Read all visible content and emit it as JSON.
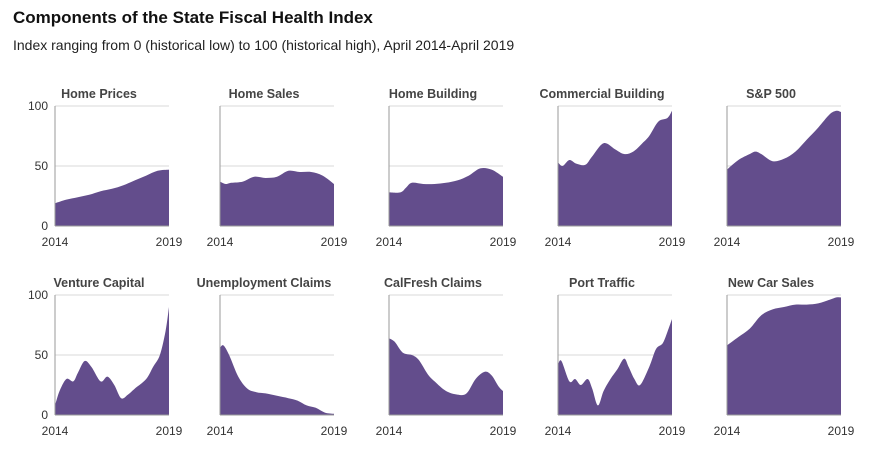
{
  "title": "Components of the State Fiscal Health Index",
  "subtitle": "Index ranging from 0 (historical low) to 100 (historical high), April 2014-April 2019",
  "colors": {
    "area": "#634d8c",
    "grid": "#d9d9d9",
    "axis": "#9a9a9a"
  },
  "chart_data": [
    {
      "type": "area",
      "title": "Home Prices",
      "x": [
        2014,
        2014.5,
        2015,
        2015.5,
        2016,
        2016.5,
        2017,
        2017.5,
        2018,
        2018.5,
        2019
      ],
      "values": [
        19,
        22,
        24,
        26,
        29,
        31,
        34,
        38,
        42,
        46,
        47
      ],
      "ylim": [
        0,
        100
      ],
      "yticks": [
        0,
        50,
        100
      ],
      "xticks": [
        "2014",
        "2019"
      ]
    },
    {
      "type": "area",
      "title": "Home Sales",
      "x": [
        2014,
        2014.25,
        2014.5,
        2015,
        2015.5,
        2016,
        2016.5,
        2017,
        2017.5,
        2018,
        2018.5,
        2019
      ],
      "values": [
        37,
        35,
        36,
        37,
        41,
        40,
        41,
        46,
        45,
        45,
        42,
        35
      ],
      "ylim": [
        0,
        100
      ],
      "yticks": [
        0,
        50,
        100
      ],
      "xticks": [
        "2014",
        "2019"
      ]
    },
    {
      "type": "area",
      "title": "Home Building",
      "x": [
        2014,
        2014.5,
        2014.75,
        2015,
        2015.5,
        2016,
        2016.5,
        2017,
        2017.5,
        2018,
        2018.5,
        2019
      ],
      "values": [
        28,
        28,
        32,
        36,
        35,
        35,
        36,
        38,
        42,
        48,
        47,
        41
      ],
      "ylim": [
        0,
        100
      ],
      "yticks": [
        0,
        50,
        100
      ],
      "xticks": [
        "2014",
        "2019"
      ]
    },
    {
      "type": "area",
      "title": "Commercial Building",
      "x": [
        2014,
        2014.2,
        2014.5,
        2014.8,
        2015.2,
        2015.5,
        2016,
        2016.5,
        2016.9,
        2017.3,
        2017.7,
        2018,
        2018.4,
        2018.8,
        2019
      ],
      "values": [
        53,
        50,
        55,
        52,
        51,
        58,
        69,
        64,
        60,
        62,
        69,
        75,
        87,
        90,
        96
      ],
      "ylim": [
        0,
        100
      ],
      "yticks": [
        0,
        50,
        100
      ],
      "xticks": [
        "2014",
        "2019"
      ]
    },
    {
      "type": "area",
      "title": "S&P 500",
      "x": [
        2014,
        2014.5,
        2015,
        2015.25,
        2015.5,
        2016,
        2016.5,
        2017,
        2017.5,
        2018,
        2018.5,
        2018.8,
        2019
      ],
      "values": [
        47,
        55,
        60,
        62,
        60,
        54,
        56,
        62,
        72,
        82,
        93,
        96,
        95
      ],
      "ylim": [
        0,
        100
      ],
      "yticks": [
        0,
        50,
        100
      ],
      "xticks": [
        "2014",
        "2019"
      ]
    },
    {
      "type": "area",
      "title": "Venture Capital",
      "x": [
        2014,
        2014.2,
        2014.5,
        2014.8,
        2015,
        2015.3,
        2015.6,
        2016,
        2016.3,
        2016.6,
        2016.9,
        2017.2,
        2017.5,
        2018,
        2018.3,
        2018.6,
        2018.85,
        2019
      ],
      "values": [
        8,
        20,
        30,
        28,
        35,
        45,
        40,
        28,
        32,
        25,
        14,
        17,
        22,
        30,
        40,
        50,
        70,
        90
      ],
      "ylim": [
        0,
        100
      ],
      "yticks": [
        0,
        50,
        100
      ],
      "xticks": [
        "2014",
        "2019"
      ]
    },
    {
      "type": "area",
      "title": "Unemployment Claims",
      "x": [
        2014,
        2014.15,
        2014.4,
        2014.8,
        2015.2,
        2015.6,
        2016,
        2016.5,
        2017,
        2017.4,
        2017.8,
        2018.2,
        2018.6,
        2019
      ],
      "values": [
        56,
        58,
        50,
        32,
        22,
        19,
        18,
        16,
        14,
        12,
        8,
        6,
        2,
        1
      ],
      "ylim": [
        0,
        100
      ],
      "yticks": [
        0,
        50,
        100
      ],
      "xticks": [
        "2014",
        "2019"
      ]
    },
    {
      "type": "area",
      "title": "CalFresh Claims",
      "x": [
        2014,
        2014.25,
        2014.6,
        2015,
        2015.3,
        2015.7,
        2016,
        2016.5,
        2017,
        2017.4,
        2017.8,
        2018.2,
        2018.5,
        2018.8,
        2019
      ],
      "values": [
        64,
        61,
        52,
        50,
        46,
        34,
        28,
        20,
        17,
        18,
        30,
        36,
        33,
        24,
        20
      ],
      "ylim": [
        0,
        100
      ],
      "yticks": [
        0,
        50,
        100
      ],
      "xticks": [
        "2014",
        "2019"
      ]
    },
    {
      "type": "area",
      "title": "Port Traffic",
      "x": [
        2014,
        2014.15,
        2014.5,
        2014.75,
        2015,
        2015.3,
        2015.5,
        2015.75,
        2016,
        2016.3,
        2016.6,
        2016.9,
        2017.1,
        2017.35,
        2017.6,
        2018,
        2018.3,
        2018.6,
        2018.85,
        2019
      ],
      "values": [
        42,
        45,
        28,
        30,
        25,
        30,
        22,
        8,
        20,
        30,
        38,
        47,
        40,
        30,
        25,
        40,
        55,
        60,
        72,
        80
      ],
      "ylim": [
        0,
        100
      ],
      "yticks": [
        0,
        50,
        100
      ],
      "xticks": [
        "2014",
        "2019"
      ]
    },
    {
      "type": "area",
      "title": "New Car Sales",
      "x": [
        2014,
        2014.5,
        2015,
        2015.5,
        2016,
        2016.5,
        2017,
        2017.5,
        2018,
        2018.5,
        2018.8,
        2019
      ],
      "values": [
        58,
        65,
        72,
        83,
        88,
        90,
        92,
        92,
        93,
        96,
        98,
        98
      ],
      "ylim": [
        0,
        100
      ],
      "yticks": [
        0,
        50,
        100
      ],
      "xticks": [
        "2014",
        "2019"
      ]
    }
  ]
}
